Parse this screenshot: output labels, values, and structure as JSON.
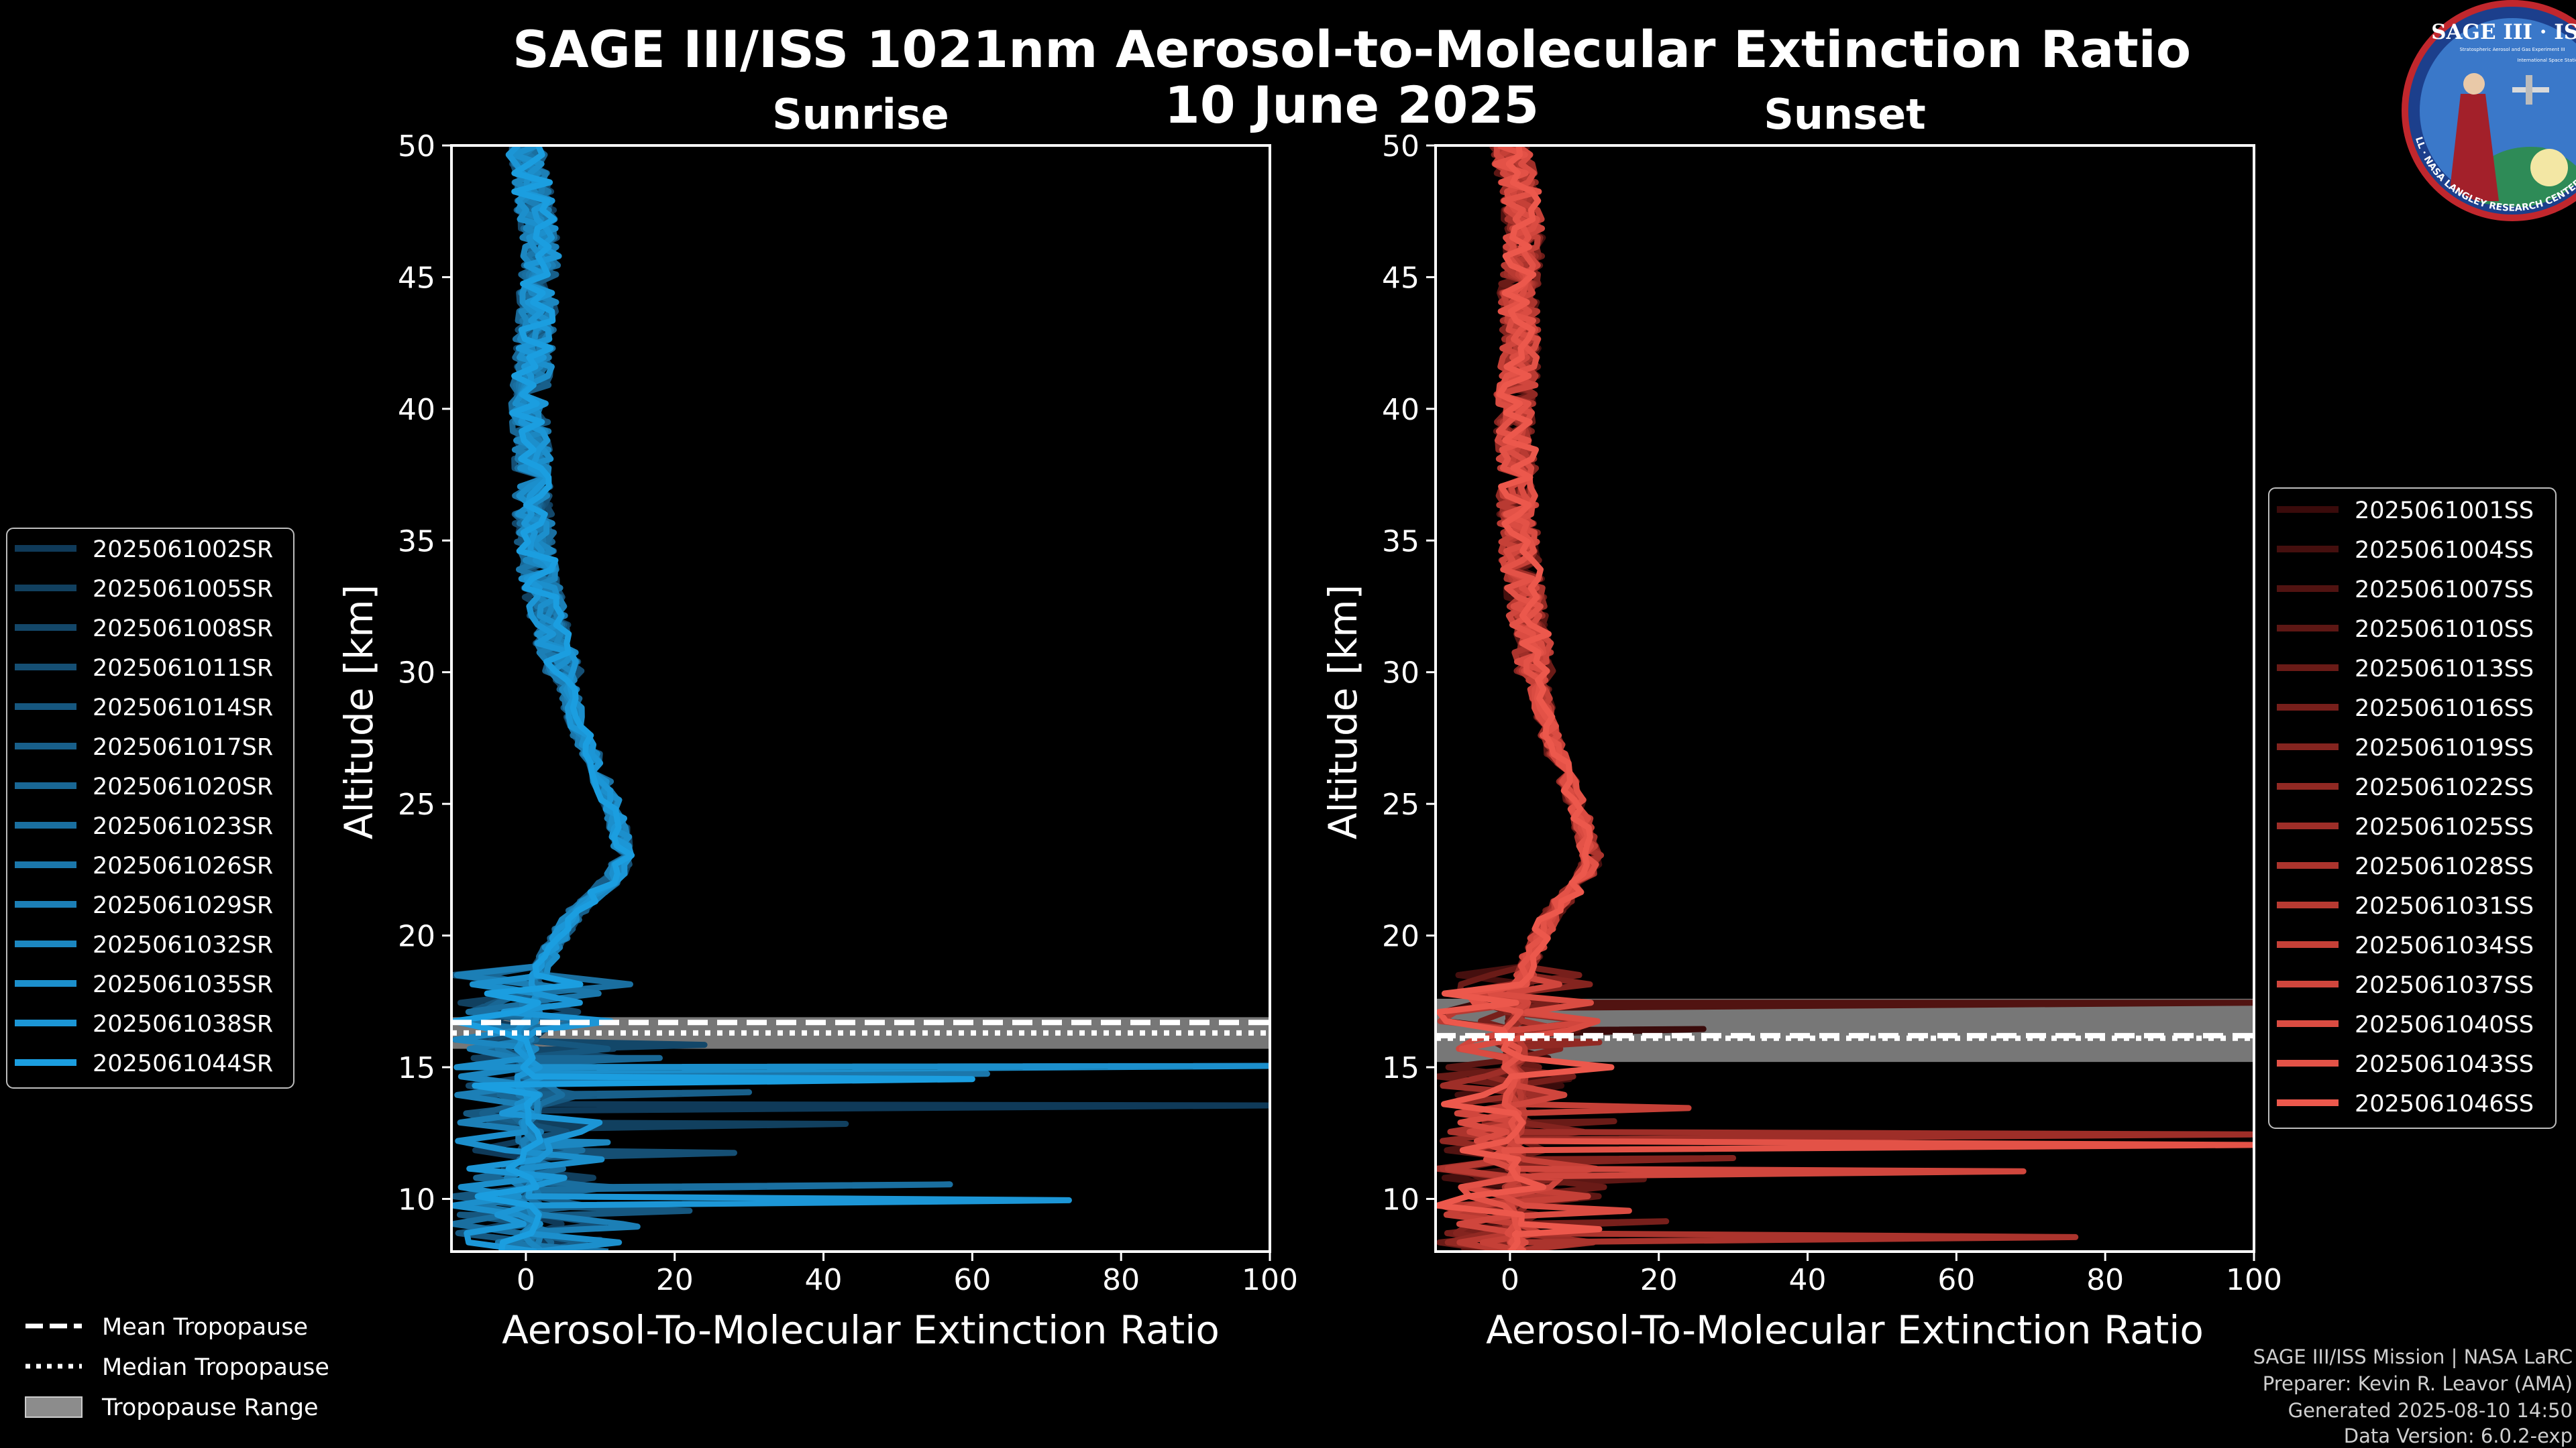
{
  "title": "SAGE III/ISS 1021nm Aerosol-to-Molecular Extinction Ratio",
  "date": "10 June 2025",
  "logo": {
    "top_text": "SAGE III · ISS",
    "tiny_text": "Stratospheric Aerosol and Gas Experiment III",
    "iss_text": "International Space Station",
    "ring_text": "BALL · NASA LANGLEY RESEARCH CENTER · TAS-I · ESA"
  },
  "credits": [
    "SAGE III/ISS Mission | NASA LaRC",
    "Preparer: Kevin R. Leavor (AMA)",
    "Generated 2025-08-10 14:50",
    "Data Version: 6.0.2-exp"
  ],
  "tropopause_legend": [
    {
      "style": "dashed",
      "label": "Mean Tropopause"
    },
    {
      "style": "dotted",
      "label": "Median Tropopause"
    },
    {
      "style": "range",
      "label": "Tropopause Range"
    }
  ],
  "chart_data": [
    {
      "type": "line",
      "panel": "sunrise",
      "title": "Sunrise",
      "xlabel": "Aerosol-To-Molecular Extinction Ratio",
      "ylabel": "Altitude [km]",
      "xlim": [
        -10,
        100
      ],
      "ylim": [
        8,
        50
      ],
      "xticks": [
        0,
        20,
        40,
        60,
        80,
        100
      ],
      "yticks": [
        10,
        15,
        20,
        25,
        30,
        35,
        40,
        45,
        50
      ],
      "legend_position": "left",
      "tropopause": {
        "mean": 16.7,
        "median": 16.3,
        "range": [
          15.7,
          16.9
        ]
      },
      "profile": {
        "altitude_km": [
          50,
          48,
          46,
          44,
          42,
          40,
          38,
          36,
          34,
          32,
          30,
          28,
          27,
          26,
          25,
          24,
          23,
          22.5,
          22,
          21.5,
          21,
          20,
          19,
          18,
          17.5,
          17,
          16,
          14,
          12,
          10,
          8
        ],
        "ratio": [
          0,
          1,
          2,
          1.5,
          1,
          0.5,
          1,
          1,
          1.5,
          3,
          5,
          7,
          8.5,
          10,
          11.5,
          12.5,
          13,
          12.5,
          11,
          9,
          7,
          4.5,
          2.5,
          1,
          0.5,
          0.3,
          0.2,
          0.4,
          0.6,
          0.5,
          0.8
        ]
      },
      "series": [
        {
          "name": "2025061002SR",
          "color": "#0f3a59",
          "spikes": [
            {
              "alt": 13.6,
              "value": 100
            },
            {
              "alt": 8.5,
              "value": 10
            }
          ]
        },
        {
          "name": "2025061005SR",
          "color": "#11405f",
          "spikes": [
            {
              "alt": 12.9,
              "value": 43
            }
          ]
        },
        {
          "name": "2025061008SR",
          "color": "#134769",
          "spikes": [
            {
              "alt": 15.9,
              "value": 24
            }
          ]
        },
        {
          "name": "2025061011SR",
          "color": "#154f74",
          "spikes": [
            {
              "alt": 11.8,
              "value": 28
            }
          ]
        },
        {
          "name": "2025061014SR",
          "color": "#16577f",
          "spikes": [
            {
              "alt": 9.6,
              "value": 22
            }
          ]
        },
        {
          "name": "2025061017SR",
          "color": "#185f8a",
          "spikes": [
            {
              "alt": 14.1,
              "value": 30
            }
          ]
        },
        {
          "name": "2025061020SR",
          "color": "#196795",
          "spikes": [
            {
              "alt": 15.4,
              "value": 18
            }
          ]
        },
        {
          "name": "2025061023SR",
          "color": "#1a6fa0",
          "spikes": [
            {
              "alt": 10.6,
              "value": 57
            }
          ]
        },
        {
          "name": "2025061026SR",
          "color": "#1b77ab",
          "spikes": [
            {
              "alt": 14.8,
              "value": 62
            }
          ]
        },
        {
          "name": "2025061029SR",
          "color": "#1c7fb6",
          "spikes": [
            {
              "alt": 9.0,
              "value": 15
            }
          ]
        },
        {
          "name": "2025061032SR",
          "color": "#1c87c1",
          "spikes": [
            {
              "alt": 12.2,
              "value": 11
            }
          ]
        },
        {
          "name": "2025061035SR",
          "color": "#1c8fcc",
          "spikes": [
            {
              "alt": 15.1,
              "value": 100
            }
          ]
        },
        {
          "name": "2025061038SR",
          "color": "#1c96d6",
          "spikes": [
            {
              "alt": 10.0,
              "value": 73
            }
          ]
        },
        {
          "name": "2025061044SR",
          "color": "#1b9ee0",
          "spikes": [
            {
              "alt": 14.6,
              "value": 60
            }
          ]
        }
      ]
    },
    {
      "type": "line",
      "panel": "sunset",
      "title": "Sunset",
      "xlabel": "Aerosol-To-Molecular Extinction Ratio",
      "ylabel": "Altitude [km]",
      "xlim": [
        -10,
        100
      ],
      "ylim": [
        8,
        50
      ],
      "xticks": [
        0,
        20,
        40,
        60,
        80,
        100
      ],
      "yticks": [
        10,
        15,
        20,
        25,
        30,
        35,
        40,
        45,
        50
      ],
      "legend_position": "right",
      "tropopause": {
        "mean": 16.2,
        "median": 16.1,
        "range": [
          15.2,
          17.6
        ]
      },
      "profile": {
        "altitude_km": [
          50,
          48,
          46,
          44,
          42,
          40,
          38,
          36,
          34,
          32,
          30,
          28,
          27,
          26,
          25,
          24,
          23,
          22.5,
          22,
          21,
          20,
          19,
          18,
          17,
          16,
          14,
          12,
          10,
          8
        ],
        "ratio": [
          0,
          1.5,
          2,
          1,
          1.5,
          0.5,
          1,
          1,
          1.5,
          2.5,
          3.5,
          5,
          6,
          7.5,
          9,
          10,
          11,
          10.5,
          9.5,
          6,
          4,
          2.5,
          1.2,
          0.8,
          0.5,
          0.8,
          0.5,
          0.8,
          0.6
        ]
      },
      "series": [
        {
          "name": "2025061001SS",
          "color": "#3a0b0b",
          "spikes": [
            {
              "alt": 16.5,
              "value": 26
            }
          ]
        },
        {
          "name": "2025061004SS",
          "color": "#450f0e",
          "spikes": [
            {
              "alt": 14.6,
              "value": 8
            }
          ]
        },
        {
          "name": "2025061007SS",
          "color": "#511311",
          "spikes": [
            {
              "alt": 17.5,
              "value": 100
            }
          ]
        },
        {
          "name": "2025061010SS",
          "color": "#5d1714",
          "spikes": [
            {
              "alt": 10.8,
              "value": 18
            }
          ]
        },
        {
          "name": "2025061013SS",
          "color": "#6a1b17",
          "spikes": [
            {
              "alt": 13.0,
              "value": 14
            }
          ]
        },
        {
          "name": "2025061016SS",
          "color": "#771f1b",
          "spikes": [
            {
              "alt": 9.2,
              "value": 21
            }
          ]
        },
        {
          "name": "2025061019SS",
          "color": "#84241f",
          "spikes": [
            {
              "alt": 11.6,
              "value": 30
            }
          ]
        },
        {
          "name": "2025061022SS",
          "color": "#912923",
          "spikes": [
            {
              "alt": 16.0,
              "value": 12
            }
          ]
        },
        {
          "name": "2025061025SS",
          "color": "#9e2e28",
          "spikes": [
            {
              "alt": 12.5,
              "value": 100
            }
          ]
        },
        {
          "name": "2025061028SS",
          "color": "#ab342d",
          "spikes": [
            {
              "alt": 8.6,
              "value": 76
            }
          ]
        },
        {
          "name": "2025061031SS",
          "color": "#b83a32",
          "spikes": [
            {
              "alt": 10.1,
              "value": 9
            }
          ]
        },
        {
          "name": "2025061034SS",
          "color": "#c54037",
          "spikes": [
            {
              "alt": 13.5,
              "value": 24
            }
          ]
        },
        {
          "name": "2025061037SS",
          "color": "#d0463d",
          "spikes": [
            {
              "alt": 11.1,
              "value": 69
            }
          ]
        },
        {
          "name": "2025061040SS",
          "color": "#da4c42",
          "spikes": [
            {
              "alt": 9.6,
              "value": 16
            }
          ]
        },
        {
          "name": "2025061043SS",
          "color": "#e35247",
          "spikes": [
            {
              "alt": 12.1,
              "value": 100
            }
          ]
        },
        {
          "name": "2025061046SS",
          "color": "#ec584c",
          "spikes": [
            {
              "alt": 8.9,
              "value": 12
            }
          ]
        }
      ]
    }
  ]
}
